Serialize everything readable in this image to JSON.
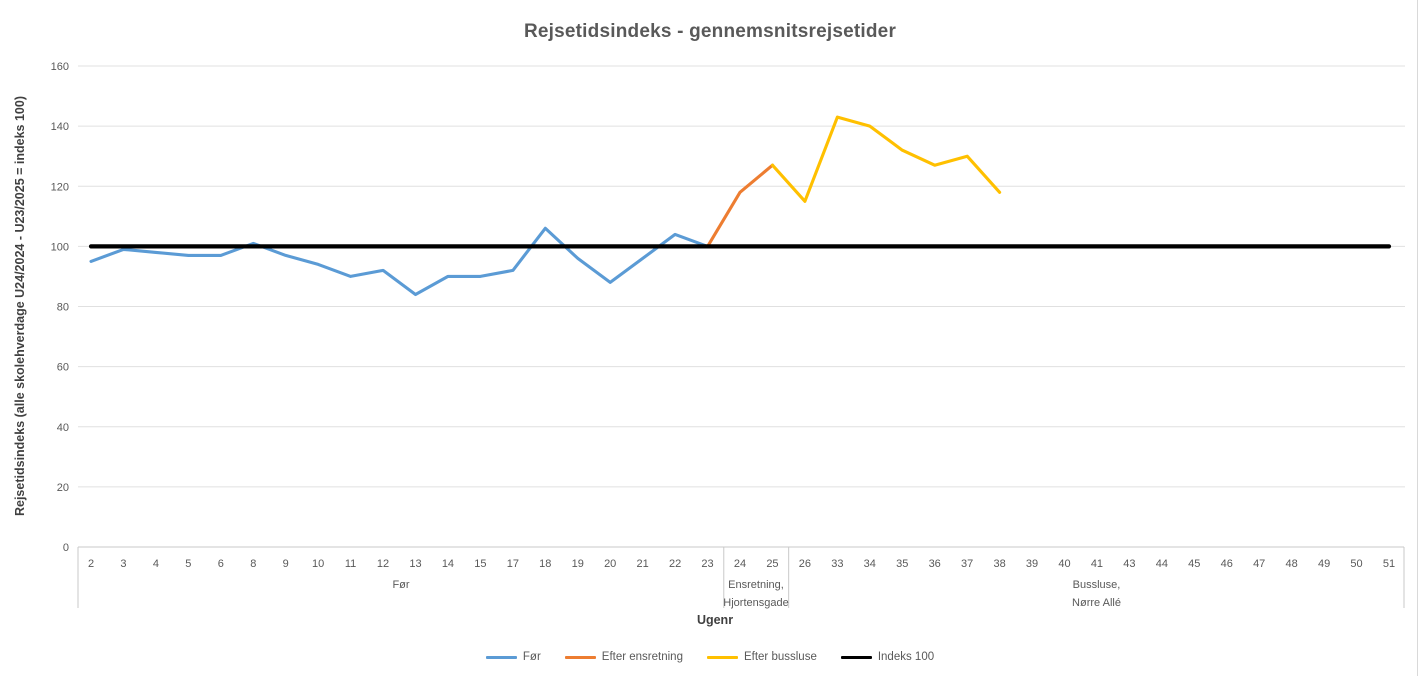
{
  "chart": {
    "title": "Rejsetidsindeks - gennemsnitsrejsetider",
    "y_axis": {
      "title": "Rejsetidsindeks (alle skolehverdage U24/2024 - U23/2025 = indeks 100)"
    },
    "x_axis": {
      "title": "Ugenr",
      "groups": [
        {
          "label": "Før"
        },
        {
          "label": "Ensretning,\nHjortensgade"
        },
        {
          "label": "Bussluse,\nNørre Allé"
        }
      ]
    }
  },
  "legend": {
    "items": [
      {
        "label": "Før",
        "color": "#5B9BD5"
      },
      {
        "label": "Efter ensretning",
        "color": "#ED7D31"
      },
      {
        "label": "Efter bussluse",
        "color": "#FFC000"
      },
      {
        "label": "Indeks 100",
        "color": "#000000"
      }
    ]
  },
  "colors": {
    "grid": "#E0E0E0",
    "axis": "#C9C9C9",
    "tick_text": "#595959",
    "title_text": "#595959"
  },
  "chart_data": {
    "type": "line",
    "title": "Rejsetidsindeks - gennemsnitsrejsetider",
    "xlabel": "Ugenr",
    "ylabel": "Rejsetidsindeks (alle skolehverdage U24/2024 - U23/2025 = indeks 100)",
    "ylim": [
      0,
      160
    ],
    "y_ticks": [
      0,
      20,
      40,
      60,
      80,
      100,
      120,
      140,
      160
    ],
    "grid": true,
    "legend_position": "bottom",
    "categories": [
      "2",
      "3",
      "4",
      "5",
      "6",
      "8",
      "9",
      "10",
      "11",
      "12",
      "13",
      "14",
      "15",
      "17",
      "18",
      "19",
      "20",
      "21",
      "22",
      "23",
      "24",
      "25",
      "26",
      "33",
      "34",
      "35",
      "36",
      "37",
      "38",
      "39",
      "40",
      "41",
      "43",
      "44",
      "45",
      "46",
      "47",
      "48",
      "49",
      "50",
      "51"
    ],
    "category_groups": [
      {
        "label": "Før",
        "from": "2",
        "to": "23"
      },
      {
        "label": "Ensretning, Hjortensgade",
        "from": "24",
        "to": "25"
      },
      {
        "label": "Bussluse, Nørre Allé",
        "from": "26",
        "to": "51"
      }
    ],
    "series": [
      {
        "name": "Før",
        "color": "#5B9BD5",
        "start_index": 0,
        "values": [
          95,
          99,
          98,
          97,
          97,
          101,
          97,
          94,
          90,
          92,
          84,
          90,
          90,
          92,
          106,
          96,
          88,
          96,
          104,
          100
        ]
      },
      {
        "name": "Efter ensretning",
        "color": "#ED7D31",
        "start_index": 19,
        "values": [
          100,
          118,
          127
        ]
      },
      {
        "name": "Efter bussluse",
        "color": "#FFC000",
        "start_index": 21,
        "values": [
          127,
          115,
          143,
          140,
          132,
          127,
          130,
          118
        ]
      },
      {
        "name": "Indeks 100",
        "color": "#000000",
        "start_index": 0,
        "values": [
          100,
          100,
          100,
          100,
          100,
          100,
          100,
          100,
          100,
          100,
          100,
          100,
          100,
          100,
          100,
          100,
          100,
          100,
          100,
          100,
          100,
          100,
          100,
          100,
          100,
          100,
          100,
          100,
          100,
          100,
          100,
          100,
          100,
          100,
          100,
          100,
          100,
          100,
          100,
          100,
          100
        ]
      }
    ]
  }
}
